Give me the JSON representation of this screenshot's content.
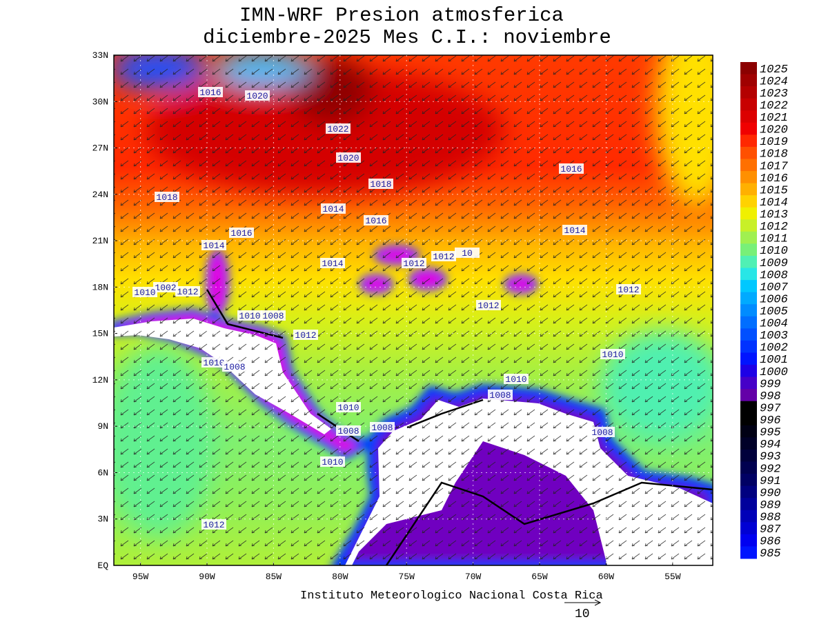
{
  "header": {
    "title_line1": "IMN-WRF  Presion atmosferica",
    "title_line2": "diciembre-2025 Mes C.I.: noviembre"
  },
  "map": {
    "lat_labels": [
      "EQ",
      "3N",
      "6N",
      "9N",
      "12N",
      "15N",
      "18N",
      "21N",
      "24N",
      "27N",
      "30N",
      "33N"
    ],
    "lon_labels": [
      "95W",
      "90W",
      "85W",
      "80W",
      "75W",
      "70W",
      "65W",
      "60W",
      "55W"
    ],
    "contour_labels": [
      "1016",
      "1020",
      "1022",
      "1020",
      "1018",
      "1018",
      "1016",
      "1014",
      "1016",
      "1014",
      "1016",
      "1014",
      "1014",
      "1012",
      "1012",
      "10",
      "1012",
      "1002",
      "1010",
      "1012",
      "1012",
      "1010",
      "1008",
      "1012",
      "1010",
      "1008",
      "1010",
      "1010",
      "1008",
      "1010",
      "1008",
      "1008",
      "1008",
      "1010",
      "1012"
    ]
  },
  "colorbar": {
    "levels": [
      1025,
      1024,
      1023,
      1022,
      1021,
      1020,
      1019,
      1018,
      1017,
      1016,
      1015,
      1014,
      1013,
      1012,
      1011,
      1010,
      1009,
      1008,
      1007,
      1006,
      1005,
      1004,
      1003,
      1002,
      1001,
      1000,
      999,
      998,
      997,
      996,
      995,
      994,
      993,
      992,
      991,
      990,
      989,
      988,
      987,
      986,
      985
    ],
    "colors": [
      "#8b0000",
      "#a00000",
      "#b40000",
      "#c80000",
      "#dc0000",
      "#f00000",
      "#ff2800",
      "#ff5000",
      "#ff7000",
      "#ff9000",
      "#ffb000",
      "#ffd200",
      "#f0f000",
      "#c8f028",
      "#a0f050",
      "#78f078",
      "#50f0b4",
      "#28e6e6",
      "#00c8ff",
      "#00aaff",
      "#008cff",
      "#006eff",
      "#0050ff",
      "#0032ff",
      "#0014ff",
      "#1e00e6",
      "#4600c8",
      "#6400a8",
      "#000000",
      "#000000",
      "#000014",
      "#000028",
      "#00003c",
      "#000050",
      "#000064",
      "#000080",
      "#00009c",
      "#0000b8",
      "#0000d4",
      "#0000f0",
      "#0014ff"
    ]
  },
  "footer": {
    "credit": "Instituto Meteorologico Nacional Costa Rica",
    "vector_scale": "10"
  }
}
